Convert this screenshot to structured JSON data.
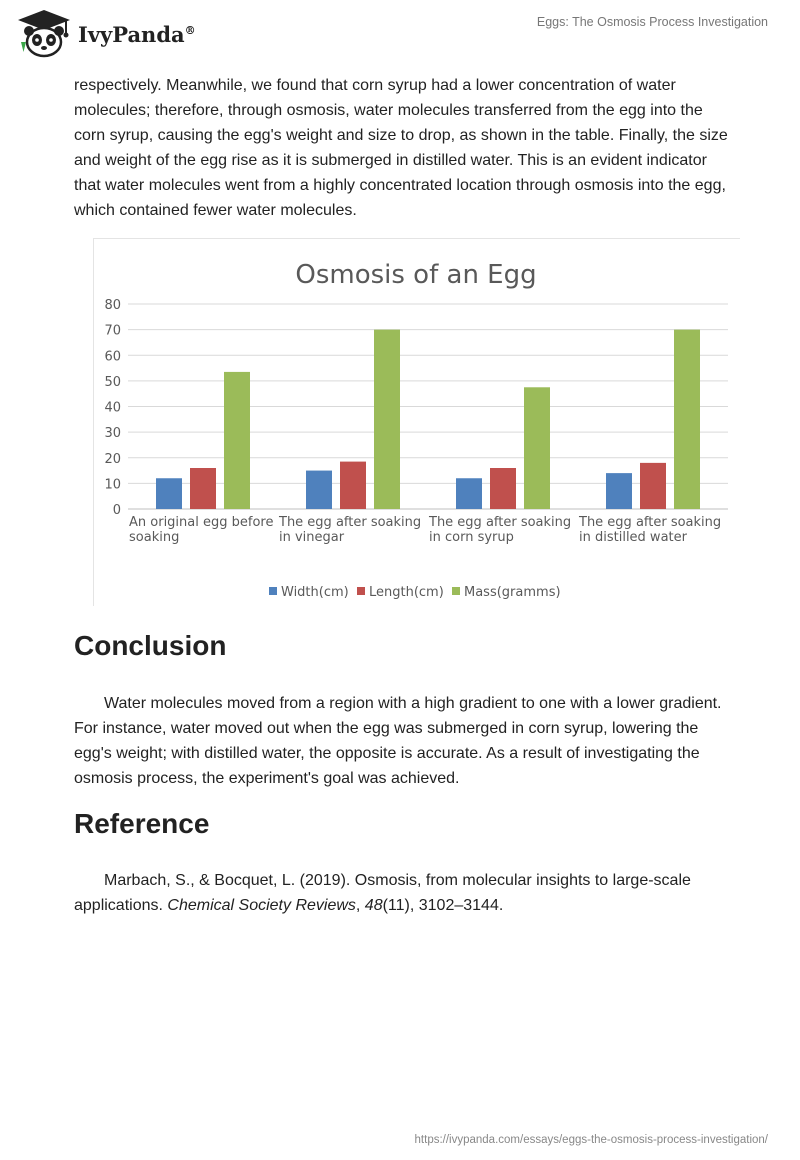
{
  "header": {
    "brand": "IvyPanda",
    "registered": "®",
    "doc_title": "Eggs: The Osmosis Process Investigation"
  },
  "intro_paragraph": "respectively. Meanwhile, we found that corn syrup had a lower concentration of water molecules; therefore, through osmosis, water molecules transferred from the egg into the corn syrup, causing the egg's weight and size to drop, as shown in the table. Finally, the size and weight of the egg rise as it is submerged in distilled water. This is an evident indicator that water molecules went from a highly concentrated location through osmosis into the egg, which contained fewer water molecules.",
  "chart_data": {
    "type": "bar",
    "title": "Osmosis of an Egg",
    "categories": [
      [
        "An original egg before",
        "soaking"
      ],
      [
        "The egg after soaking",
        "in vinegar"
      ],
      [
        "The egg after soaking",
        "in corn syrup"
      ],
      [
        "The egg after soaking",
        "in distilled water"
      ]
    ],
    "series": [
      {
        "name": "Width(cm)",
        "color": "#4f81bd",
        "values": [
          12,
          15,
          12,
          14
        ]
      },
      {
        "name": "Length(cm)",
        "color": "#c0504d",
        "values": [
          16,
          18.5,
          16,
          18
        ]
      },
      {
        "name": "Mass(gramms)",
        "color": "#9bbb59",
        "values": [
          53.5,
          70,
          47.5,
          70
        ]
      }
    ],
    "yticks": [
      "0",
      "10",
      "20",
      "30",
      "40",
      "50",
      "60",
      "70",
      "80"
    ],
    "ylim": [
      0,
      80
    ],
    "grid": true,
    "legend_position": "bottom"
  },
  "conclusion": {
    "heading": "Conclusion",
    "text": "Water molecules moved from a region with a high gradient to one with a lower gradient. For instance, water moved out when the egg was submerged in corn syrup, lowering the egg's weight; with distilled water, the opposite is accurate. As a result of investigating the osmosis process, the experiment's goal was achieved."
  },
  "reference": {
    "heading": "Reference",
    "authors": "Marbach, S., & Bocquet, L. (2019). Osmosis, from molecular insights to large-scale applications. ",
    "journal": "Chemical Society Reviews",
    "sep1": ", ",
    "volume": "48",
    "issue_pages": "(11), 3102–3144."
  },
  "footer": {
    "url": "https://ivypanda.com/essays/eggs-the-osmosis-process-investigation/"
  }
}
